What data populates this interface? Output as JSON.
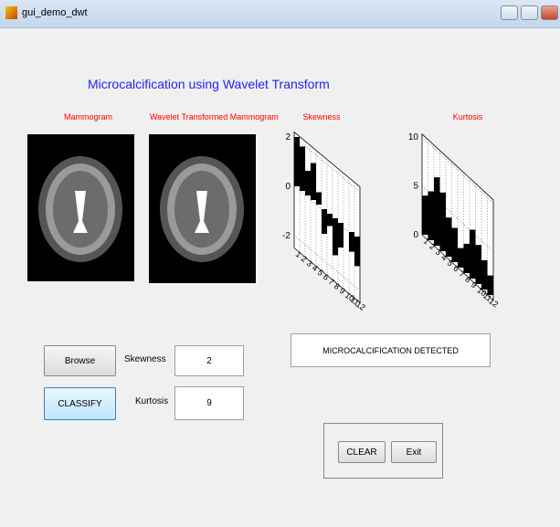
{
  "window": {
    "title": "gui_demo_dwt"
  },
  "header": {
    "title": "Microcalcification  using Wavelet Transform"
  },
  "images": {
    "original_label": "Mammogram",
    "transformed_label": "Wavelet Transformed Mammogram"
  },
  "controls": {
    "browse": "Browse",
    "classify": "CLASSIFY",
    "clear": "CLEAR",
    "exit": "Exit"
  },
  "fields": {
    "skewness_label": "Skewness",
    "skewness_value": 2,
    "kurtosis_label": "Kurtosis",
    "kurtosis_value": 9
  },
  "result": {
    "text": "MICROCALCIFICATION DETECTED"
  },
  "charts": [
    {
      "type": "bar3",
      "title": "Skewness",
      "categories": [
        "1",
        "2",
        "3",
        "4",
        "5",
        "6",
        "7",
        "8",
        "9",
        "10",
        "11",
        "12"
      ],
      "values": [
        2,
        1.8,
        1,
        1.5,
        0.5,
        -1,
        -0.5,
        -1.5,
        -1,
        0,
        -0.8,
        -1.2
      ],
      "ylim": [
        -2.5,
        2.2
      ],
      "yticks": [
        -2,
        0,
        2
      ],
      "color": "#000000",
      "grid": true
    },
    {
      "type": "bar3",
      "title": "Kurtosis",
      "categories": [
        "1",
        "2",
        "3",
        "4",
        "5",
        "6",
        "7",
        "8",
        "9",
        "10",
        "11",
        "12"
      ],
      "values": [
        4,
        5,
        7,
        6,
        4,
        3.5,
        2,
        3,
        5,
        4,
        3,
        2
      ],
      "ylim": [
        0,
        10.3
      ],
      "yticks": [
        0,
        5,
        10
      ],
      "color": "#000000",
      "grid": true
    }
  ]
}
